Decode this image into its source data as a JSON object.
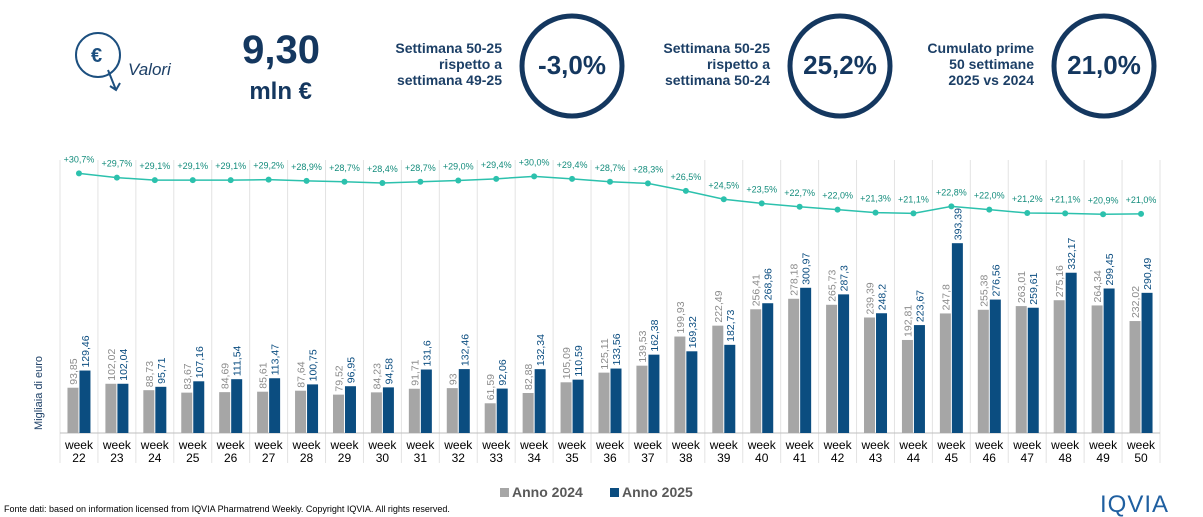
{
  "header": {
    "icon_label": "Valori",
    "total_value": "9,30",
    "total_unit": "mln €",
    "kpis": [
      {
        "lines": [
          "Settimana 50-25",
          "rispetto a",
          "settimana 49-25"
        ],
        "value": "-3,0%"
      },
      {
        "lines": [
          "Settimana 50-25",
          "rispetto a",
          "settimana 50-24"
        ],
        "value": "25,2%"
      },
      {
        "lines": [
          "Cumulato prime",
          "50 settimane",
          "2025 vs 2024"
        ],
        "value": "21,0%"
      }
    ]
  },
  "chart_data": {
    "type": "bar",
    "y_axis_label": "Migliaia di euro",
    "categories": [
      "week 22",
      "week 23",
      "week 24",
      "week 25",
      "week 26",
      "week 27",
      "week 28",
      "week 29",
      "week 30",
      "week 31",
      "week 32",
      "week 33",
      "week 34",
      "week 35",
      "week 36",
      "week 37",
      "week 38",
      "week 39",
      "week 40",
      "week 41",
      "week 42",
      "week 43",
      "week 44",
      "week 45",
      "week 46",
      "week 47",
      "week 48",
      "week 49",
      "week 50"
    ],
    "ylim": [
      0,
      400
    ],
    "y2lim": [
      20,
      32
    ],
    "series": [
      {
        "name": "Anno 2024",
        "color": "#a6a6a6",
        "values": [
          93.85,
          102.02,
          88.73,
          83.67,
          84.69,
          85.61,
          87.64,
          79.52,
          84.23,
          91.71,
          93,
          61.59,
          82.88,
          105.09,
          125.11,
          139.53,
          199.93,
          222.49,
          256.41,
          278.18,
          265.73,
          239.39,
          192.81,
          247.8,
          255.38,
          263.01,
          275.16,
          264.34,
          232.02
        ],
        "value_labels": [
          "93,85",
          "102,02",
          "88,73",
          "83,67",
          "84,69",
          "85,61",
          "87,64",
          "79,52",
          "84,23",
          "91,71",
          "93",
          "61,59",
          "82,88",
          "105,09",
          "125,11",
          "139,53",
          "199,93",
          "222,49",
          "256,41",
          "278,18",
          "265,73",
          "239,39",
          "192,81",
          "247,8",
          "255,38",
          "263,01",
          "275,16",
          "264,34",
          "232,02"
        ]
      },
      {
        "name": "Anno 2025",
        "color": "#0b4d80",
        "values": [
          129.46,
          102.04,
          95.71,
          107.16,
          111.54,
          113.47,
          100.75,
          96.95,
          94.58,
          131.6,
          132.46,
          92.06,
          132.34,
          110.59,
          133.56,
          162.38,
          169.32,
          182.73,
          268.96,
          300.97,
          287.3,
          248.2,
          223.67,
          393.39,
          276.56,
          259.61,
          332.17,
          299.45,
          290.49
        ],
        "value_labels": [
          "129,46",
          "102,04",
          "95,71",
          "107,16",
          "111,54",
          "113,47",
          "100,75",
          "96,95",
          "94,58",
          "131,6",
          "132,46",
          "92,06",
          "132,34",
          "110,59",
          "133,56",
          "162,38",
          "169,32",
          "182,73",
          "268,96",
          "300,97",
          "287,3",
          "248,2",
          "223,67",
          "393,39",
          "276,56",
          "259,61",
          "332,17",
          "299,45",
          "290,49"
        ]
      },
      {
        "type": "line",
        "axis": "y2",
        "color": "#2cc1ad",
        "values": [
          30.7,
          29.7,
          29.1,
          29.1,
          29.1,
          29.2,
          28.9,
          28.7,
          28.4,
          28.7,
          29.0,
          29.4,
          30.0,
          29.4,
          28.7,
          28.3,
          26.5,
          24.5,
          23.5,
          22.7,
          22.0,
          21.3,
          21.1,
          22.8,
          22.0,
          21.2,
          21.1,
          20.9,
          21.0
        ],
        "value_labels": [
          "+30,7%",
          "+29,7%",
          "+29,1%",
          "+29,1%",
          "+29,1%",
          "+29,2%",
          "+28,9%",
          "+28,7%",
          "+28,4%",
          "+28,7%",
          "+29,0%",
          "+29,4%",
          "+30,0%",
          "+29,4%",
          "+28,7%",
          "+28,3%",
          "+26,5%",
          "+24,5%",
          "+23,5%",
          "+22,7%",
          "+22,0%",
          "+21,3%",
          "+21,1%",
          "+22,8%",
          "+22,0%",
          "+21,2%",
          "+21,1%",
          "+20,9%",
          "+21,0%"
        ]
      }
    ]
  },
  "footer": {
    "source": "Fonte dati: based on information licensed from IQVIA Pharmatrend Weekly. Copyright IQVIA. All rights reserved.",
    "logo": "IQVIA"
  }
}
